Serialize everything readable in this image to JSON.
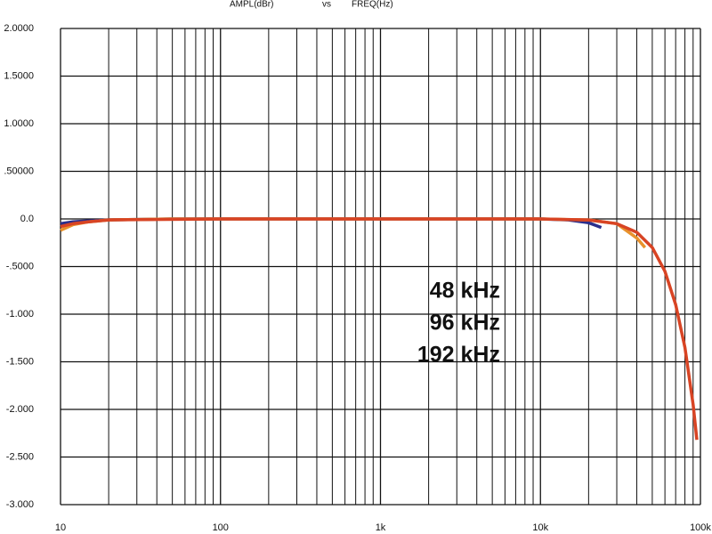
{
  "chart_data": {
    "type": "line",
    "title_parts": [
      "AMPL(dBr)",
      "vs",
      "FREQ(Hz)"
    ],
    "x_log": true,
    "grid": true,
    "minor_grid": true,
    "xlim": [
      10,
      100000
    ],
    "xticks": [
      {
        "value": 10,
        "label": "10"
      },
      {
        "value": 100,
        "label": "100"
      },
      {
        "value": 1000,
        "label": "1k"
      },
      {
        "value": 10000,
        "label": "10k"
      },
      {
        "value": 100000,
        "label": "100k"
      }
    ],
    "ylim": [
      -3,
      2
    ],
    "yticks": [
      {
        "value": 2,
        "label": "2.0000"
      },
      {
        "value": 1.5,
        "label": "1.5000"
      },
      {
        "value": 1,
        "label": "1.0000"
      },
      {
        "value": 0.5,
        "label": ".50000"
      },
      {
        "value": 0,
        "label": "0.0"
      },
      {
        "value": -0.5,
        "label": "-.5000"
      },
      {
        "value": -1,
        "label": "-1.000"
      },
      {
        "value": -1.5,
        "label": "-1.500"
      },
      {
        "value": -2,
        "label": "-2.000"
      },
      {
        "value": -2.5,
        "label": "-2.500"
      },
      {
        "value": -3,
        "label": "-3.000"
      }
    ],
    "series": [
      {
        "name": "48 kHz",
        "color": "#2b2f8c",
        "x": [
          10,
          12,
          15,
          20,
          50,
          100,
          1000,
          10000,
          15000,
          20000,
          24000
        ],
        "values": [
          -0.05,
          -0.03,
          -0.02,
          -0.01,
          0,
          0,
          0,
          0,
          -0.01,
          -0.04,
          -0.09
        ]
      },
      {
        "name": "96 kHz",
        "color": "#e8922c",
        "x": [
          10,
          12,
          15,
          20,
          50,
          100,
          1000,
          10000,
          20000,
          30000,
          40000,
          45000
        ],
        "values": [
          -0.12,
          -0.06,
          -0.03,
          -0.01,
          0,
          0,
          0,
          0,
          -0.01,
          -0.05,
          -0.2,
          -0.3
        ]
      },
      {
        "name": "192 kHz",
        "color": "#d84424",
        "x": [
          10,
          12,
          15,
          20,
          100,
          1000,
          10000,
          20000,
          30000,
          40000,
          50000,
          60000,
          70000,
          80000,
          90000,
          95000
        ],
        "values": [
          -0.08,
          -0.05,
          -0.03,
          -0.01,
          0,
          0,
          0,
          -0.01,
          -0.05,
          -0.14,
          -0.3,
          -0.55,
          -0.9,
          -1.35,
          -1.95,
          -2.32
        ]
      }
    ]
  }
}
